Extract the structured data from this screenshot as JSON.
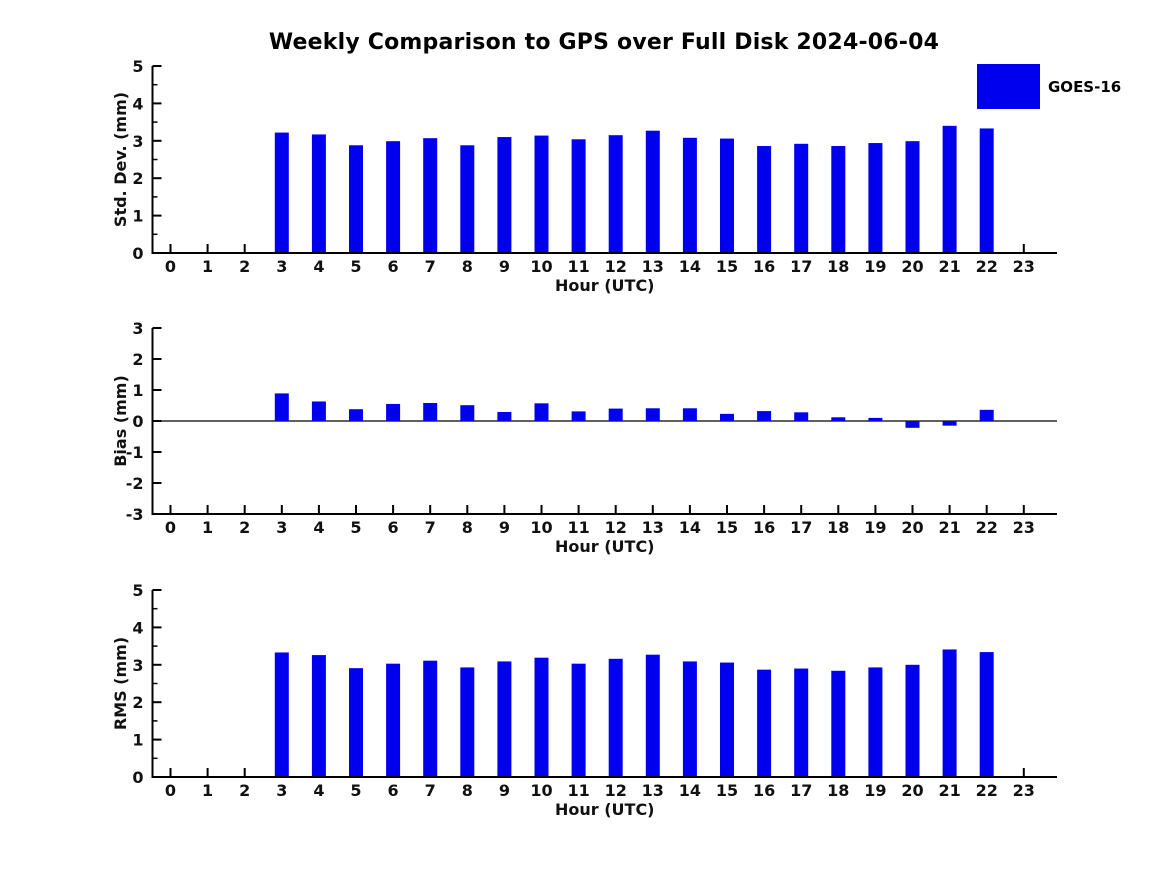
{
  "title": "Weekly Comparison to GPS over Full Disk 2024-06-04",
  "legend": {
    "label": "GOES-16",
    "color": "#0000EE"
  },
  "bar_color": "#0000EE",
  "axis_color": "#000000",
  "chart_data": [
    {
      "type": "bar",
      "title": "Weekly Comparison to GPS over Full Disk 2024-06-04",
      "ylabel": "Std. Dev. (mm)",
      "xlabel": "Hour (UTC)",
      "ylim": [
        0,
        5
      ],
      "yticks": [
        0,
        1,
        2,
        3,
        4,
        5
      ],
      "minor_step": 0.5,
      "grid": false,
      "legend_position": "top-right",
      "legend_entries": [
        "GOES-16"
      ],
      "categories": [
        0,
        1,
        2,
        3,
        4,
        5,
        6,
        7,
        8,
        9,
        10,
        11,
        12,
        13,
        14,
        15,
        16,
        17,
        18,
        19,
        20,
        21,
        22,
        23
      ],
      "values": [
        null,
        null,
        null,
        3.22,
        3.17,
        2.88,
        2.99,
        3.07,
        2.88,
        3.1,
        3.14,
        3.04,
        3.15,
        3.27,
        3.08,
        3.06,
        2.86,
        2.92,
        2.86,
        2.94,
        2.99,
        3.4,
        3.33,
        null
      ]
    },
    {
      "type": "bar",
      "ylabel": "Bias (mm)",
      "xlabel": "Hour (UTC)",
      "ylim": [
        -3,
        3
      ],
      "yticks": [
        3,
        2,
        1,
        0,
        -1,
        -2,
        -3
      ],
      "zero_line": true,
      "grid": false,
      "categories": [
        0,
        1,
        2,
        3,
        4,
        5,
        6,
        7,
        8,
        9,
        10,
        11,
        12,
        13,
        14,
        15,
        16,
        17,
        18,
        19,
        20,
        21,
        22,
        23
      ],
      "values": [
        null,
        null,
        null,
        0.89,
        0.63,
        0.38,
        0.55,
        0.58,
        0.51,
        0.29,
        0.57,
        0.31,
        0.4,
        0.41,
        0.41,
        0.23,
        0.32,
        0.28,
        0.12,
        0.1,
        -0.22,
        -0.15,
        0.36,
        null
      ]
    },
    {
      "type": "bar",
      "ylabel": "RMS (mm)",
      "xlabel": "Hour (UTC)",
      "ylim": [
        0,
        5
      ],
      "yticks": [
        0,
        1,
        2,
        3,
        4,
        5
      ],
      "minor_step": 0.5,
      "grid": false,
      "categories": [
        0,
        1,
        2,
        3,
        4,
        5,
        6,
        7,
        8,
        9,
        10,
        11,
        12,
        13,
        14,
        15,
        16,
        17,
        18,
        19,
        20,
        21,
        22,
        23
      ],
      "values": [
        null,
        null,
        null,
        3.33,
        3.26,
        2.91,
        3.03,
        3.11,
        2.93,
        3.09,
        3.19,
        3.03,
        3.16,
        3.27,
        3.09,
        3.06,
        2.87,
        2.9,
        2.84,
        2.93,
        3.0,
        3.41,
        3.34,
        null
      ]
    }
  ]
}
